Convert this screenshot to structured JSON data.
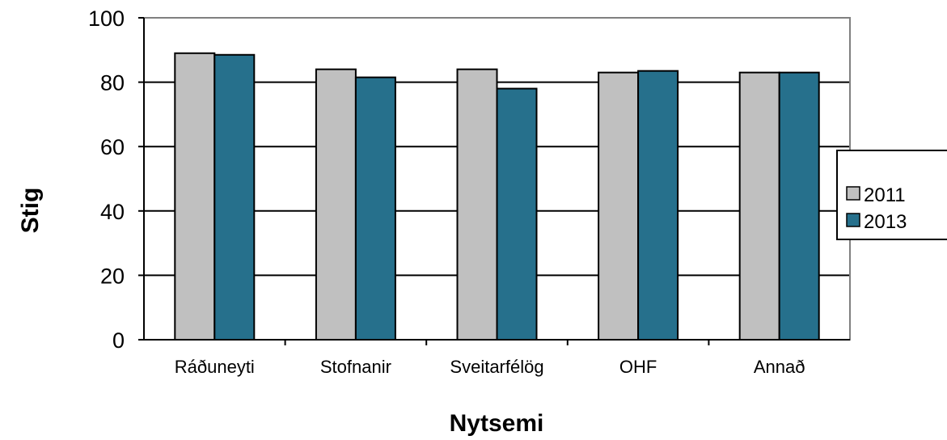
{
  "chart_data": {
    "type": "bar",
    "title": "",
    "xlabel": "Nytsemi",
    "ylabel": "Stig",
    "ylim": [
      0,
      100
    ],
    "yticks": [
      0,
      20,
      40,
      60,
      80,
      100
    ],
    "grid": true,
    "legend_position": "right",
    "categories": [
      "Ráðuneyti",
      "Stofnanir",
      "Sveitarfélög",
      "OHF",
      "Annað"
    ],
    "series": [
      {
        "name": "2011",
        "color": "#c0c0c0",
        "values": [
          89,
          84,
          84,
          83,
          83
        ]
      },
      {
        "name": "2013",
        "color": "#26708c",
        "values": [
          88.5,
          81.5,
          78,
          83.5,
          83
        ]
      }
    ]
  }
}
